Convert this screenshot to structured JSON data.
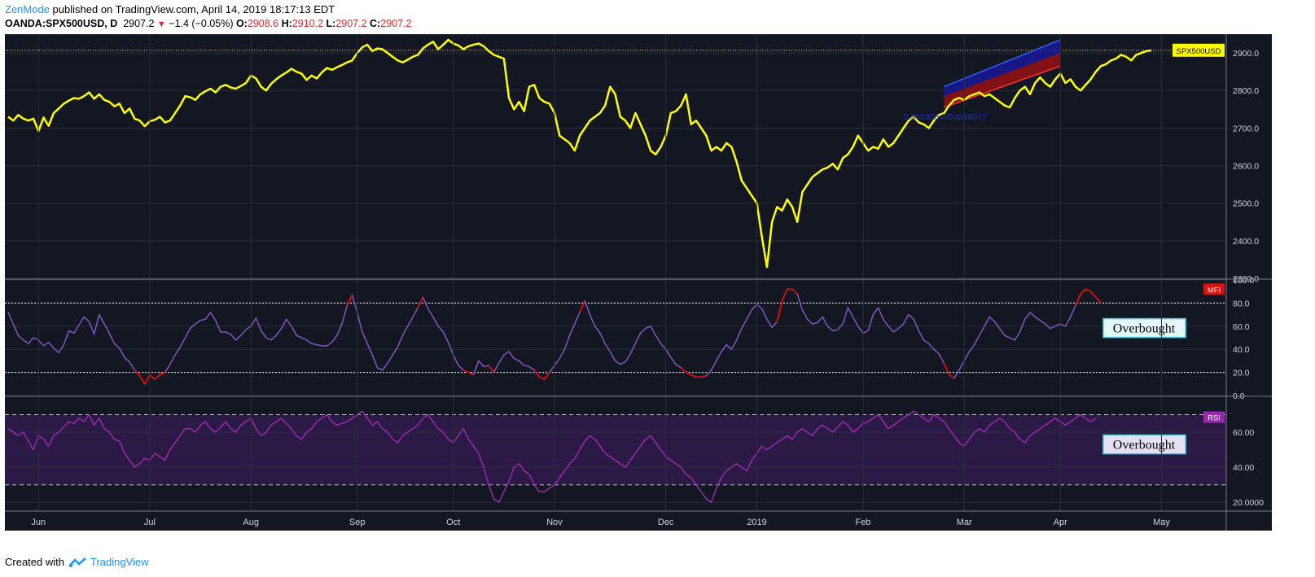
{
  "header": {
    "author": "ZenMode",
    "published": "published on TradingView.com, April 14, 2019 18:17:13 EDT"
  },
  "ohlc": {
    "symbol": "OANDA:SPX500USD, D",
    "last": "2907.2",
    "change_icon": "down-triangle-icon",
    "change": "−1.4 (−0.05%)",
    "o_label": "O:",
    "o": "2908.6",
    "h_label": "H:",
    "h": "2910.2",
    "l_label": "L:",
    "l": "2907.2",
    "c_label": "C:",
    "c": "2907.2"
  },
  "footer": {
    "created_with": "Created with",
    "brand": "TradingView",
    "brand_icon": "tradingview-logo-icon"
  },
  "colors": {
    "background": "#131722",
    "grid": "#2a2e39",
    "price_line": "#ffff00",
    "mfi_line": "#7e57c2",
    "mfi_extreme": "#ff0000",
    "rsi_line": "#9c27b0",
    "rsi_band": "#2a1a45",
    "channel_upper": "#1a1aa8",
    "channel_lower": "#b01010"
  },
  "chart_data": [
    {
      "type": "line",
      "name": "price",
      "label": "SPX500USD",
      "last_value": 2907.2,
      "ylim": [
        2300,
        2950
      ],
      "yticks": [
        "2900.0",
        "2800.0",
        "2700.0",
        "2600.0",
        "2500.0",
        "2400.0",
        "2300.0"
      ],
      "ytick_values": [
        2900,
        2800,
        2700,
        2600,
        2500,
        2400,
        2300
      ],
      "x_labels": [
        "Jun",
        "Jul",
        "Aug",
        "Sep",
        "Oct",
        "Nov",
        "Dec",
        "2019",
        "Feb",
        "Mar",
        "Apr",
        "May"
      ],
      "x_label_index": [
        6,
        28,
        48,
        69,
        88,
        108,
        130,
        148,
        169,
        189,
        208,
        228
      ],
      "x_count": 236,
      "annotation": "0.9659554054048077",
      "channel": {
        "upper_start": [
          185,
          2810
        ],
        "upper_end": [
          208,
          2935
        ],
        "lower_start": [
          185,
          2755
        ],
        "lower_end": [
          208,
          2865
        ],
        "mid_start": [
          185,
          2785
        ],
        "mid_end": [
          208,
          2900
        ]
      },
      "values": [
        2730,
        2720,
        2735,
        2725,
        2720,
        2725,
        2692,
        2728,
        2706,
        2740,
        2752,
        2765,
        2773,
        2780,
        2778,
        2785,
        2795,
        2778,
        2790,
        2775,
        2770,
        2758,
        2765,
        2740,
        2752,
        2725,
        2720,
        2705,
        2718,
        2722,
        2730,
        2715,
        2720,
        2740,
        2760,
        2785,
        2782,
        2775,
        2790,
        2798,
        2805,
        2795,
        2810,
        2815,
        2808,
        2805,
        2812,
        2820,
        2840,
        2832,
        2810,
        2800,
        2818,
        2830,
        2840,
        2848,
        2858,
        2850,
        2845,
        2828,
        2840,
        2832,
        2848,
        2860,
        2855,
        2862,
        2868,
        2875,
        2880,
        2900,
        2915,
        2922,
        2905,
        2912,
        2910,
        2900,
        2890,
        2880,
        2875,
        2882,
        2890,
        2895,
        2912,
        2922,
        2930,
        2910,
        2922,
        2935,
        2925,
        2920,
        2910,
        2918,
        2922,
        2925,
        2918,
        2905,
        2895,
        2890,
        2885,
        2780,
        2750,
        2770,
        2745,
        2810,
        2815,
        2780,
        2770,
        2765,
        2740,
        2680,
        2670,
        2660,
        2640,
        2680,
        2700,
        2720,
        2730,
        2740,
        2760,
        2810,
        2790,
        2730,
        2720,
        2700,
        2740,
        2710,
        2680,
        2640,
        2630,
        2650,
        2680,
        2740,
        2745,
        2760,
        2790,
        2710,
        2720,
        2700,
        2680,
        2640,
        2650,
        2640,
        2660,
        2650,
        2610,
        2560,
        2540,
        2520,
        2500,
        2410,
        2330,
        2450,
        2490,
        2480,
        2510,
        2490,
        2450,
        2530,
        2550,
        2570,
        2580,
        2590,
        2595,
        2605,
        2590,
        2620,
        2630,
        2650,
        2680,
        2660,
        2640,
        2650,
        2645,
        2670,
        2650,
        2660,
        2680,
        2700,
        2720,
        2730,
        2715,
        2710,
        2700,
        2720,
        2735,
        2740,
        2760,
        2775,
        2780,
        2775,
        2785,
        2790,
        2795,
        2785,
        2790,
        2780,
        2770,
        2760,
        2755,
        2780,
        2800,
        2810,
        2790,
        2820,
        2835,
        2820,
        2810,
        2830,
        2845,
        2820,
        2830,
        2810,
        2800,
        2815,
        2830,
        2850,
        2865,
        2870,
        2880,
        2885,
        2895,
        2890,
        2880,
        2895,
        2900,
        2905,
        2907
      ]
    },
    {
      "type": "line",
      "name": "MFI",
      "label": "MFI",
      "ylim": [
        0,
        100
      ],
      "yticks": [
        "100.0",
        "80.0",
        "60.0",
        "40.0",
        "20.0",
        "0.0"
      ],
      "ytick_values": [
        100,
        80,
        60,
        40,
        20,
        0
      ],
      "upper_band": 80,
      "lower_band": 20,
      "annotation": "Overbought",
      "values": [
        72,
        62,
        52,
        48,
        45,
        50,
        48,
        43,
        46,
        41,
        37,
        44,
        56,
        54,
        61,
        68,
        64,
        53,
        70,
        62,
        54,
        45,
        41,
        33,
        29,
        22,
        17,
        10,
        18,
        14,
        18,
        20,
        27,
        35,
        42,
        50,
        58,
        62,
        65,
        66,
        72,
        65,
        55,
        55,
        53,
        48,
        52,
        57,
        60,
        67,
        56,
        50,
        48,
        52,
        58,
        66,
        60,
        52,
        50,
        48,
        45,
        44,
        43,
        43,
        46,
        52,
        62,
        78,
        87,
        72,
        55,
        45,
        35,
        24,
        22,
        28,
        35,
        42,
        52,
        60,
        68,
        76,
        85,
        75,
        68,
        60,
        55,
        46,
        35,
        26,
        22,
        20,
        18,
        30,
        25,
        26,
        20,
        28,
        35,
        38,
        32,
        30,
        26,
        25,
        22,
        16,
        14,
        20,
        26,
        32,
        40,
        52,
        62,
        72,
        82,
        70,
        60,
        54,
        45,
        38,
        30,
        27,
        29,
        36,
        45,
        54,
        58,
        60,
        52,
        45,
        40,
        33,
        27,
        24,
        20,
        18,
        16,
        16,
        17,
        22,
        30,
        38,
        44,
        40,
        48,
        58,
        66,
        74,
        79,
        75,
        66,
        59,
        64,
        82,
        92,
        92,
        88,
        74,
        66,
        62,
        63,
        68,
        60,
        56,
        57,
        62,
        76,
        68,
        60,
        54,
        56,
        70,
        76,
        66,
        60,
        55,
        58,
        62,
        70,
        66,
        56,
        48,
        45,
        40,
        36,
        28,
        18,
        15,
        22,
        30,
        38,
        44,
        52,
        60,
        68,
        64,
        58,
        52,
        50,
        48,
        55,
        66,
        72,
        68,
        65,
        62,
        58,
        60,
        62,
        60,
        68,
        78,
        88,
        92,
        90,
        85,
        80
      ]
    },
    {
      "type": "line",
      "name": "RSI",
      "label": "RSI",
      "ylim": [
        15,
        80
      ],
      "yticks": [
        "60.00",
        "40.00",
        "20.0000"
      ],
      "ytick_values": [
        60,
        40,
        20
      ],
      "upper_band": 70,
      "lower_band": 30,
      "annotation": "Overbought",
      "values": [
        62,
        60,
        58,
        60,
        55,
        50,
        58,
        56,
        52,
        58,
        60,
        63,
        66,
        65,
        68,
        66,
        70,
        64,
        68,
        62,
        60,
        56,
        55,
        48,
        44,
        40,
        42,
        45,
        44,
        48,
        46,
        44,
        50,
        54,
        58,
        62,
        62,
        60,
        64,
        66,
        62,
        60,
        63,
        66,
        62,
        60,
        64,
        66,
        68,
        62,
        58,
        60,
        64,
        66,
        68,
        65,
        62,
        58,
        56,
        60,
        62,
        66,
        68,
        70,
        66,
        64,
        65,
        66,
        68,
        70,
        72,
        68,
        64,
        66,
        62,
        60,
        56,
        54,
        58,
        60,
        62,
        64,
        68,
        70,
        66,
        62,
        60,
        56,
        54,
        58,
        62,
        56,
        52,
        48,
        40,
        30,
        22,
        20,
        26,
        32,
        40,
        42,
        38,
        36,
        30,
        26,
        26,
        28,
        30,
        34,
        38,
        42,
        45,
        50,
        55,
        58,
        56,
        52,
        48,
        46,
        44,
        42,
        40,
        44,
        48,
        52,
        56,
        58,
        54,
        50,
        46,
        44,
        42,
        40,
        36,
        34,
        30,
        26,
        22,
        20,
        28,
        34,
        38,
        40,
        42,
        40,
        38,
        44,
        48,
        52,
        50,
        52,
        54,
        56,
        58,
        56,
        60,
        62,
        60,
        58,
        62,
        64,
        62,
        60,
        63,
        66,
        64,
        60,
        62,
        65,
        66,
        68,
        70,
        66,
        62,
        64,
        66,
        68,
        70,
        72,
        70,
        68,
        66,
        70,
        68,
        66,
        62,
        58,
        54,
        52,
        56,
        60,
        62,
        60,
        64,
        66,
        68,
        66,
        62,
        60,
        56,
        54,
        58,
        60,
        62,
        64,
        66,
        68,
        66,
        64,
        66,
        68,
        70,
        68,
        66,
        68
      ]
    }
  ]
}
